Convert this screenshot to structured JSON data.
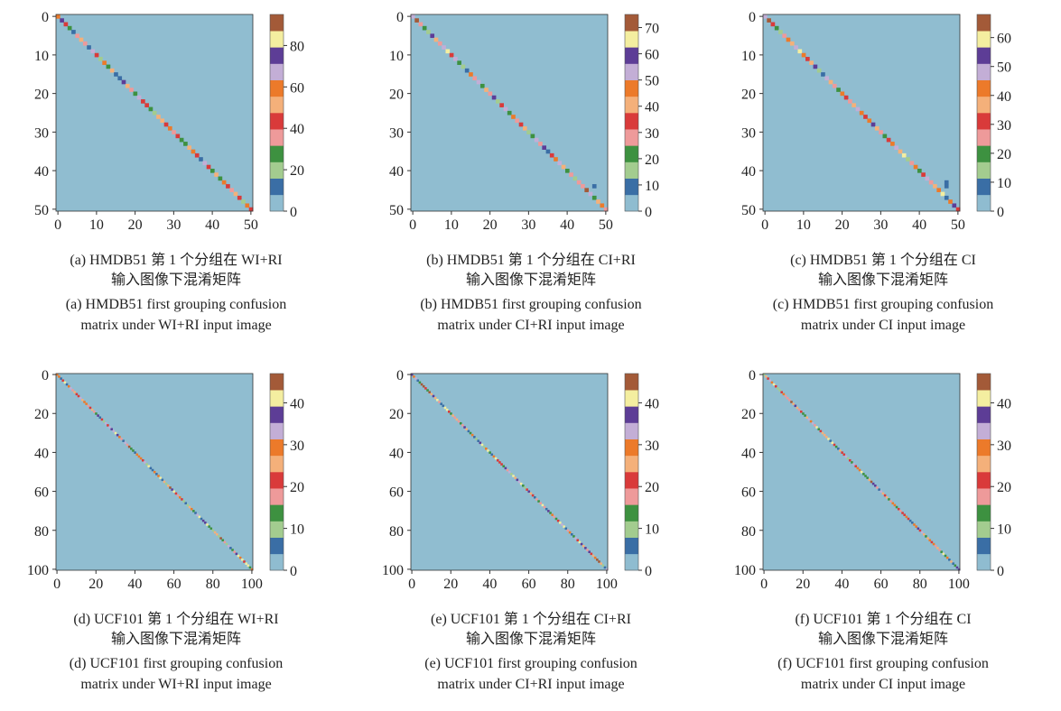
{
  "palette": [
    "#8fbcd0",
    "#3a6ea5",
    "#a3cc8f",
    "#3d9140",
    "#ee9a9a",
    "#d93a3a",
    "#f4b07a",
    "#ec7a2a",
    "#c3aed6",
    "#5d3d96",
    "#f4eea0",
    "#a35a38"
  ],
  "background_color": "#90bdd0",
  "chart_data": [
    {
      "type": "heatmap",
      "id": "a",
      "n": 51,
      "axis_ticks": [
        0,
        10,
        20,
        30,
        40,
        50
      ],
      "colorbar": {
        "max": 95,
        "ticks": [
          0,
          20,
          40,
          60,
          80
        ]
      },
      "diagonal_values": [
        60,
        75,
        40,
        25,
        15,
        35,
        52,
        32,
        10,
        65,
        45,
        22,
        60,
        30,
        50,
        15,
        10,
        75,
        55,
        35,
        25,
        70,
        40,
        45,
        30,
        20,
        55,
        50,
        40,
        60,
        35,
        45,
        30,
        25,
        55,
        60,
        40,
        10,
        70,
        45,
        30,
        55,
        25,
        60,
        40,
        35,
        50,
        45,
        20,
        60,
        40
      ],
      "off_diagonal": [],
      "caption_zh": "(a) HMDB51 第 1 个分组在 WI+RI",
      "caption_zh2": "输入图像下混淆矩阵",
      "caption_en": "(a) HMDB51 first grouping confusion",
      "caption_en2": "matrix under WI+RI input image"
    },
    {
      "type": "heatmap",
      "id": "b",
      "n": 51,
      "axis_ticks": [
        0,
        10,
        20,
        30,
        40,
        50
      ],
      "colorbar": {
        "max": 75,
        "ticks": [
          0,
          10,
          20,
          30,
          40,
          50,
          60,
          70
        ]
      },
      "diagonal_values": [
        50,
        70,
        30,
        20,
        15,
        60,
        40,
        25,
        55,
        65,
        35,
        50,
        20,
        15,
        10,
        45,
        30,
        55,
        20,
        40,
        25,
        60,
        15,
        35,
        50,
        20,
        45,
        30,
        35,
        40,
        15,
        20,
        55,
        25,
        60,
        10,
        35,
        45,
        50,
        40,
        20,
        30,
        15,
        25,
        30,
        72,
        55,
        20,
        40,
        45,
        30
      ],
      "off_diagonal": [
        {
          "row": 44,
          "col": 47,
          "value": 12
        }
      ],
      "caption_zh": "(b) HMDB51 第 1 个分组在 CI+RI",
      "caption_zh2": "输入图像下混淆矩阵",
      "caption_en": "(b) HMDB51 first grouping confusion",
      "caption_en2": "matrix under CI+RI input image"
    },
    {
      "type": "heatmap",
      "id": "c",
      "n": 51,
      "axis_ticks": [
        0,
        10,
        20,
        30,
        40,
        50
      ],
      "colorbar": {
        "max": 68,
        "ticks": [
          0,
          10,
          20,
          30,
          40,
          50,
          60
        ]
      },
      "diagonal_values": [
        50,
        65,
        30,
        20,
        15,
        25,
        40,
        35,
        50,
        60,
        45,
        30,
        35,
        55,
        15,
        10,
        50,
        35,
        25,
        20,
        45,
        30,
        25,
        35,
        50,
        40,
        30,
        45,
        55,
        35,
        25,
        20,
        30,
        45,
        50,
        35,
        60,
        15,
        25,
        40,
        20,
        30,
        50,
        25,
        35,
        40,
        60,
        10,
        45,
        55,
        30
      ],
      "off_diagonal": [
        {
          "row": 43,
          "col": 47,
          "value": 8
        },
        {
          "row": 44,
          "col": 47,
          "value": 8
        }
      ],
      "caption_zh": "(c) HMDB51 第 1 个分组在 CI",
      "caption_zh2": "输入图像下混淆矩阵",
      "caption_en": "(c) HMDB51 first grouping confusion",
      "caption_en2": "matrix under CI input image"
    },
    {
      "type": "heatmap",
      "id": "d",
      "n": 101,
      "axis_ticks": [
        0,
        20,
        40,
        60,
        80,
        100
      ],
      "colorbar": {
        "max": 47,
        "ticks": [
          0,
          10,
          20,
          30,
          40
        ]
      },
      "diagonal_values": [],
      "off_diagonal": [],
      "caption_zh": "(d) UCF101 第 1 个分组在 WI+RI",
      "caption_zh2": "输入图像下混淆矩阵",
      "caption_en": "(d) UCF101 first grouping confusion",
      "caption_en2": "matrix under WI+RI input image"
    },
    {
      "type": "heatmap",
      "id": "e",
      "n": 101,
      "axis_ticks": [
        0,
        20,
        40,
        60,
        80,
        100
      ],
      "colorbar": {
        "max": 47,
        "ticks": [
          0,
          10,
          20,
          30,
          40
        ]
      },
      "diagonal_values": [],
      "off_diagonal": [],
      "caption_zh": "(e) UCF101 第 1 个分组在 CI+RI",
      "caption_zh2": "输入图像下混淆矩阵",
      "caption_en": "(e) UCF101 first grouping confusion",
      "caption_en2": "matrix under CI+RI input image"
    },
    {
      "type": "heatmap",
      "id": "f",
      "n": 101,
      "axis_ticks": [
        0,
        20,
        40,
        60,
        80,
        100
      ],
      "colorbar": {
        "max": 47,
        "ticks": [
          0,
          10,
          20,
          30,
          40
        ]
      },
      "diagonal_values": [],
      "off_diagonal": [],
      "caption_zh": "(f) UCF101 第 1 个分组在 CI",
      "caption_zh2": "输入图像下混淆矩阵",
      "caption_en": "(f) UCF101 first grouping confusion",
      "caption_en2": "matrix under CI input image"
    }
  ]
}
